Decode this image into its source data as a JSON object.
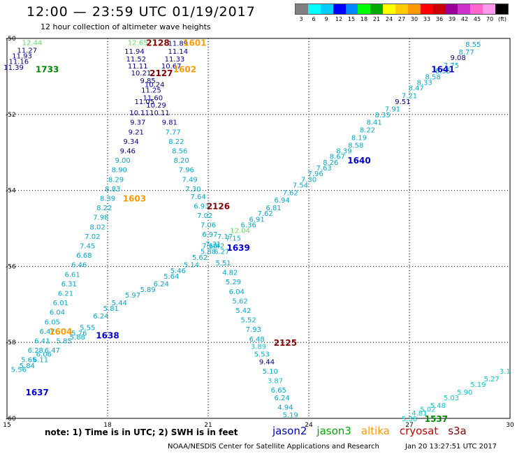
{
  "header": {
    "title": "12:00 — 23:59 UTC 01/19/2017",
    "subtitle": "12 hour collection of altimeter wave heights"
  },
  "legend": {
    "colors": [
      "#808080",
      "#00ffff",
      "#00ccff",
      "#0000ff",
      "#0088ff",
      "#00ff00",
      "#00aa00",
      "#ffff00",
      "#ffcc00",
      "#ff9900",
      "#ff0000",
      "#cc0000",
      "#990099",
      "#cc33cc",
      "#ff66cc",
      "#ff99ee",
      "#000000"
    ],
    "labels": [
      "3",
      "6",
      "9",
      "12",
      "15",
      "18",
      "21",
      "24",
      "27",
      "30",
      "33",
      "36",
      "39",
      "42",
      "45",
      "70",
      "(ft)"
    ]
  },
  "footer": {
    "note": "note:  1) Time is in UTC;  2) SWH is in feet",
    "satellites": [
      {
        "name": "jason2",
        "color": "#0000cc"
      },
      {
        "name": "jason3",
        "color": "#00aa00"
      },
      {
        "name": "altika",
        "color": "#ff9900"
      },
      {
        "name": "cryosat",
        "color": "#cc0000"
      },
      {
        "name": "s3a",
        "color": "#880000"
      }
    ],
    "credit": "NOAA/NESDIS Center for Satellite Applications and Research",
    "timestamp": "Jan 20 13:27:51 UTC 2017"
  },
  "map": {
    "lon_range": [
      15,
      30
    ],
    "lat_range": [
      -60,
      -50
    ],
    "x_ticks": [
      "15",
      "18",
      "21",
      "24",
      "27",
      "30"
    ],
    "y_ticks": [
      "-50",
      "-52",
      "-54",
      "-56",
      "-58",
      "-60"
    ],
    "passes": [
      {
        "label": "1733",
        "color": "#008800",
        "lon": 16.2,
        "lat": -50.8
      },
      {
        "label": "2128",
        "color": "#880000",
        "lon": 19.5,
        "lat": -50.1
      },
      {
        "label": "1601",
        "color": "#ff9900",
        "lon": 20.6,
        "lat": -50.1
      },
      {
        "label": "1602",
        "color": "#ff9900",
        "lon": 20.3,
        "lat": -50.8
      },
      {
        "label": "2127",
        "color": "#880000",
        "lon": 19.6,
        "lat": -50.9
      },
      {
        "label": "1641",
        "color": "#0000cc",
        "lon": 28.0,
        "lat": -50.8
      },
      {
        "label": "1640",
        "color": "#0000cc",
        "lon": 25.5,
        "lat": -53.2
      },
      {
        "label": "1603",
        "color": "#ff9900",
        "lon": 18.8,
        "lat": -54.2
      },
      {
        "label": "2126",
        "color": "#880000",
        "lon": 21.3,
        "lat": -54.4
      },
      {
        "label": "1639",
        "color": "#0000cc",
        "lon": 21.9,
        "lat": -55.5
      },
      {
        "label": "1604",
        "color": "#ff9900",
        "lon": 16.6,
        "lat": -57.7
      },
      {
        "label": "1638",
        "color": "#0000cc",
        "lon": 18.0,
        "lat": -57.8
      },
      {
        "label": "2125",
        "color": "#880000",
        "lon": 23.3,
        "lat": -58.0
      },
      {
        "label": "1637",
        "color": "#0000cc",
        "lon": 15.9,
        "lat": -59.3
      },
      {
        "label": "1537",
        "color": "#008800",
        "lon": 27.8,
        "lat": -60.0
      }
    ],
    "swh": [
      {
        "v": "12.44",
        "c": "#66dd66",
        "lon": 15.75,
        "lat": -50.1
      },
      {
        "v": "11.27",
        "c": "#000088",
        "lon": 15.6,
        "lat": -50.3
      },
      {
        "v": "11.93",
        "c": "#000088",
        "lon": 15.45,
        "lat": -50.45
      },
      {
        "v": "11.16",
        "c": "#000088",
        "lon": 15.35,
        "lat": -50.6
      },
      {
        "v": "11.39",
        "c": "#000088",
        "lon": 15.2,
        "lat": -50.75
      },
      {
        "v": "12.65",
        "c": "#66dd66",
        "lon": 18.9,
        "lat": -50.1
      },
      {
        "v": "11.89",
        "c": "#000088",
        "lon": 20.1,
        "lat": -50.12
      },
      {
        "v": "11.94",
        "c": "#000088",
        "lon": 18.8,
        "lat": -50.33
      },
      {
        "v": "11.14",
        "c": "#000088",
        "lon": 20.1,
        "lat": -50.33
      },
      {
        "v": "11.52",
        "c": "#000088",
        "lon": 18.85,
        "lat": -50.53
      },
      {
        "v": "11.33",
        "c": "#000088",
        "lon": 20.0,
        "lat": -50.53
      },
      {
        "v": "11.11",
        "c": "#000088",
        "lon": 18.9,
        "lat": -50.72
      },
      {
        "v": "10.67",
        "c": "#000088",
        "lon": 19.9,
        "lat": -50.72
      },
      {
        "v": "10.21",
        "c": "#000088",
        "lon": 19.0,
        "lat": -50.9
      },
      {
        "v": "9.85",
        "c": "#000088",
        "lon": 19.2,
        "lat": -51.1
      },
      {
        "v": "10.24",
        "c": "#000088",
        "lon": 19.4,
        "lat": -51.2
      },
      {
        "v": "11.25",
        "c": "#000088",
        "lon": 19.3,
        "lat": -51.35
      },
      {
        "v": "11.60",
        "c": "#000088",
        "lon": 19.35,
        "lat": -51.55
      },
      {
        "v": "11.05",
        "c": "#000088",
        "lon": 19.1,
        "lat": -51.65
      },
      {
        "v": "10.29",
        "c": "#000088",
        "lon": 19.45,
        "lat": -51.75
      },
      {
        "v": "10.11",
        "c": "#000088",
        "lon": 18.95,
        "lat": -51.95
      },
      {
        "v": "10.11",
        "c": "#000088",
        "lon": 19.55,
        "lat": -51.95
      },
      {
        "v": "9.37",
        "c": "#000088",
        "lon": 18.9,
        "lat": -52.2
      },
      {
        "v": "9.81",
        "c": "#000088",
        "lon": 19.85,
        "lat": -52.2
      },
      {
        "v": "9.21",
        "c": "#000088",
        "lon": 18.85,
        "lat": -52.45
      },
      {
        "v": "7.77",
        "c": "#00aacc",
        "lon": 19.95,
        "lat": -52.45
      },
      {
        "v": "9.34",
        "c": "#000088",
        "lon": 18.7,
        "lat": -52.7
      },
      {
        "v": "8.22",
        "c": "#00aacc",
        "lon": 20.05,
        "lat": -52.7
      },
      {
        "v": "9.46",
        "c": "#000088",
        "lon": 18.6,
        "lat": -52.95
      },
      {
        "v": "8.56",
        "c": "#00aacc",
        "lon": 20.15,
        "lat": -52.95
      },
      {
        "v": "9.00",
        "c": "#00aacc",
        "lon": 18.45,
        "lat": -53.2
      },
      {
        "v": "8.20",
        "c": "#00aacc",
        "lon": 20.2,
        "lat": -53.2
      },
      {
        "v": "8.90",
        "c": "#00aacc",
        "lon": 18.35,
        "lat": -53.45
      },
      {
        "v": "7.96",
        "c": "#00aacc",
        "lon": 20.35,
        "lat": -53.45
      },
      {
        "v": "8.29",
        "c": "#00aacc",
        "lon": 18.25,
        "lat": -53.7
      },
      {
        "v": "7.49",
        "c": "#00aacc",
        "lon": 20.45,
        "lat": -53.7
      },
      {
        "v": "8.83",
        "c": "#00aacc",
        "lon": 18.15,
        "lat": -53.95
      },
      {
        "v": "7.30",
        "c": "#00aacc",
        "lon": 20.55,
        "lat": -53.95
      },
      {
        "v": "8.39",
        "c": "#00aacc",
        "lon": 18.0,
        "lat": -54.2
      },
      {
        "v": "7.64",
        "c": "#00aacc",
        "lon": 20.7,
        "lat": -54.15
      },
      {
        "v": "8.22",
        "c": "#00aacc",
        "lon": 17.9,
        "lat": -54.45
      },
      {
        "v": "6.93",
        "c": "#00aacc",
        "lon": 20.8,
        "lat": -54.4
      },
      {
        "v": "7.98",
        "c": "#00aacc",
        "lon": 17.8,
        "lat": -54.7
      },
      {
        "v": "7.02",
        "c": "#00aacc",
        "lon": 20.9,
        "lat": -54.65
      },
      {
        "v": "8.02",
        "c": "#00aacc",
        "lon": 17.7,
        "lat": -54.95
      },
      {
        "v": "7.06",
        "c": "#00aacc",
        "lon": 21.0,
        "lat": -54.9
      },
      {
        "v": "7.02",
        "c": "#00aacc",
        "lon": 17.55,
        "lat": -55.2
      },
      {
        "v": "6.97",
        "c": "#00aacc",
        "lon": 21.05,
        "lat": -55.15
      },
      {
        "v": "7.45",
        "c": "#00aacc",
        "lon": 17.4,
        "lat": -55.45
      },
      {
        "v": "7.31",
        "c": "#00aacc",
        "lon": 21.15,
        "lat": -55.4
      },
      {
        "v": "6.68",
        "c": "#00aacc",
        "lon": 17.3,
        "lat": -55.7
      },
      {
        "v": "6.46",
        "c": "#00aacc",
        "lon": 17.15,
        "lat": -55.95
      },
      {
        "v": "6.61",
        "c": "#00aacc",
        "lon": 16.95,
        "lat": -56.2
      },
      {
        "v": "6.31",
        "c": "#00aacc",
        "lon": 16.85,
        "lat": -56.45
      },
      {
        "v": "6.21",
        "c": "#00aacc",
        "lon": 16.75,
        "lat": -56.7
      },
      {
        "v": "6.01",
        "c": "#00aacc",
        "lon": 16.6,
        "lat": -56.95
      },
      {
        "v": "6.04",
        "c": "#00aacc",
        "lon": 16.5,
        "lat": -57.2
      },
      {
        "v": "6.05",
        "c": "#00aacc",
        "lon": 16.35,
        "lat": -57.45
      },
      {
        "v": "6.47",
        "c": "#00aacc",
        "lon": 16.2,
        "lat": -57.7
      },
      {
        "v": "6.41",
        "c": "#00aacc",
        "lon": 16.05,
        "lat": -57.95
      },
      {
        "v": "6.28",
        "c": "#00aacc",
        "lon": 15.85,
        "lat": -58.2
      },
      {
        "v": "6.06",
        "c": "#00aacc",
        "lon": 16.1,
        "lat": -58.3
      },
      {
        "v": "5.65",
        "c": "#00aacc",
        "lon": 15.65,
        "lat": -58.45
      },
      {
        "v": "6.11",
        "c": "#00aacc",
        "lon": 16.0,
        "lat": -58.45
      },
      {
        "v": "5.56",
        "c": "#00aacc",
        "lon": 15.35,
        "lat": -58.7
      },
      {
        "v": "5.84",
        "c": "#00aacc",
        "lon": 15.6,
        "lat": -58.6
      },
      {
        "v": "6.47",
        "c": "#00aacc",
        "lon": 16.35,
        "lat": -58.2
      },
      {
        "v": "5.85",
        "c": "#00aacc",
        "lon": 16.7,
        "lat": -57.95
      },
      {
        "v": "5.88",
        "c": "#00aacc",
        "lon": 17.1,
        "lat": -57.85
      },
      {
        "v": "5.55",
        "c": "#00aacc",
        "lon": 17.4,
        "lat": -57.6
      },
      {
        "v": "5.76",
        "c": "#00aacc",
        "lon": 17.15,
        "lat": -57.75
      },
      {
        "v": "6.24",
        "c": "#00aacc",
        "lon": 17.8,
        "lat": -57.3
      },
      {
        "v": "5.81",
        "c": "#00aacc",
        "lon": 18.1,
        "lat": -57.1
      },
      {
        "v": "5.44",
        "c": "#00aacc",
        "lon": 18.35,
        "lat": -56.95
      },
      {
        "v": "5.97",
        "c": "#00aacc",
        "lon": 18.75,
        "lat": -56.75
      },
      {
        "v": "5.89",
        "c": "#00aacc",
        "lon": 19.2,
        "lat": -56.6
      },
      {
        "v": "6.24",
        "c": "#00aacc",
        "lon": 19.6,
        "lat": -56.45
      },
      {
        "v": "5.64",
        "c": "#00aacc",
        "lon": 19.9,
        "lat": -56.25
      },
      {
        "v": "5.46",
        "c": "#00aacc",
        "lon": 20.1,
        "lat": -56.1
      },
      {
        "v": "5.14",
        "c": "#00aacc",
        "lon": 20.5,
        "lat": -55.95
      },
      {
        "v": "5.62",
        "c": "#00aacc",
        "lon": 20.75,
        "lat": -55.75
      },
      {
        "v": "5.88",
        "c": "#00aacc",
        "lon": 21.0,
        "lat": -55.6
      },
      {
        "v": "7.10",
        "c": "#00aacc",
        "lon": 21.05,
        "lat": -55.45
      },
      {
        "v": "6.27",
        "c": "#00aacc",
        "lon": 21.4,
        "lat": -55.6
      },
      {
        "v": "6.42",
        "c": "#00aacc",
        "lon": 21.25,
        "lat": -55.45
      },
      {
        "v": "5.51",
        "c": "#00aacc",
        "lon": 21.45,
        "lat": -55.9
      },
      {
        "v": "4.82",
        "c": "#00aacc",
        "lon": 21.65,
        "lat": -56.15
      },
      {
        "v": "5.29",
        "c": "#00aacc",
        "lon": 21.75,
        "lat": -56.4
      },
      {
        "v": "6.04",
        "c": "#00aacc",
        "lon": 21.85,
        "lat": -56.65
      },
      {
        "v": "5.62",
        "c": "#00aacc",
        "lon": 21.95,
        "lat": -56.9
      },
      {
        "v": "5.42",
        "c": "#00aacc",
        "lon": 22.05,
        "lat": -57.15
      },
      {
        "v": "5.52",
        "c": "#00aacc",
        "lon": 22.2,
        "lat": -57.4
      },
      {
        "v": "7.93",
        "c": "#00aacc",
        "lon": 22.35,
        "lat": -57.65
      },
      {
        "v": "6.48",
        "c": "#00aacc",
        "lon": 22.45,
        "lat": -57.9
      },
      {
        "v": "3.89",
        "c": "#00cccc",
        "lon": 22.5,
        "lat": -58.1
      },
      {
        "v": "5.53",
        "c": "#00aacc",
        "lon": 22.6,
        "lat": -58.3
      },
      {
        "v": "9.44",
        "c": "#000088",
        "lon": 22.75,
        "lat": -58.5
      },
      {
        "v": "5.10",
        "c": "#00aacc",
        "lon": 22.85,
        "lat": -58.75
      },
      {
        "v": "3.87",
        "c": "#00cccc",
        "lon": 23.0,
        "lat": -59.0
      },
      {
        "v": "6.65",
        "c": "#00aacc",
        "lon": 23.1,
        "lat": -59.25
      },
      {
        "v": "6.24",
        "c": "#00aacc",
        "lon": 23.2,
        "lat": -59.45
      },
      {
        "v": "4.94",
        "c": "#00aacc",
        "lon": 23.3,
        "lat": -59.7
      },
      {
        "v": "5.19",
        "c": "#00aacc",
        "lon": 23.45,
        "lat": -59.9
      },
      {
        "v": "7.17",
        "c": "#00aacc",
        "lon": 21.5,
        "lat": -55.2
      },
      {
        "v": "7.15",
        "c": "#00aacc",
        "lon": 21.75,
        "lat": -55.25
      },
      {
        "v": "12.04",
        "c": "#66dd66",
        "lon": 21.95,
        "lat": -55.05
      },
      {
        "v": "6.36",
        "c": "#00aacc",
        "lon": 22.2,
        "lat": -54.9
      },
      {
        "v": "6.91",
        "c": "#00aacc",
        "lon": 22.45,
        "lat": -54.75
      },
      {
        "v": "7.62",
        "c": "#00aacc",
        "lon": 22.7,
        "lat": -54.6
      },
      {
        "v": "6.81",
        "c": "#00aacc",
        "lon": 22.95,
        "lat": -54.45
      },
      {
        "v": "6.94",
        "c": "#00aacc",
        "lon": 23.2,
        "lat": -54.25
      },
      {
        "v": "7.62",
        "c": "#00aacc",
        "lon": 23.45,
        "lat": -54.05
      },
      {
        "v": "7.54",
        "c": "#00aacc",
        "lon": 23.75,
        "lat": -53.85
      },
      {
        "v": "7.30",
        "c": "#00aacc",
        "lon": 24.0,
        "lat": -53.7
      },
      {
        "v": "7.96",
        "c": "#00aacc",
        "lon": 24.2,
        "lat": -53.55
      },
      {
        "v": "7.63",
        "c": "#00aacc",
        "lon": 24.45,
        "lat": -53.4
      },
      {
        "v": "8.26",
        "c": "#00aacc",
        "lon": 24.65,
        "lat": -53.25
      },
      {
        "v": "8.67",
        "c": "#00aacc",
        "lon": 24.85,
        "lat": -53.1
      },
      {
        "v": "8.39",
        "c": "#00aacc",
        "lon": 25.05,
        "lat": -52.95
      },
      {
        "v": "8.58",
        "c": "#00aacc",
        "lon": 25.4,
        "lat": -52.8
      },
      {
        "v": "8.19",
        "c": "#00aacc",
        "lon": 25.5,
        "lat": -52.6
      },
      {
        "v": "8.22",
        "c": "#00aacc",
        "lon": 25.75,
        "lat": -52.4
      },
      {
        "v": "8.41",
        "c": "#00aacc",
        "lon": 25.95,
        "lat": -52.2
      },
      {
        "v": "8.35",
        "c": "#00aacc",
        "lon": 26.2,
        "lat": -52.0
      },
      {
        "v": "7.91",
        "c": "#00aacc",
        "lon": 26.5,
        "lat": -51.85
      },
      {
        "v": "9.51",
        "c": "#000088",
        "lon": 26.8,
        "lat": -51.65
      },
      {
        "v": "7.21",
        "c": "#00aacc",
        "lon": 27.0,
        "lat": -51.5
      },
      {
        "v": "8.47",
        "c": "#00aacc",
        "lon": 27.2,
        "lat": -51.3
      },
      {
        "v": "8.33",
        "c": "#00aacc",
        "lon": 27.45,
        "lat": -51.15
      },
      {
        "v": "8.58",
        "c": "#00aacc",
        "lon": 27.7,
        "lat": -51.0
      },
      {
        "v": "8.55",
        "c": "#00aacc",
        "lon": 28.0,
        "lat": -50.85
      },
      {
        "v": "7.75",
        "c": "#00aacc",
        "lon": 28.25,
        "lat": -50.7
      },
      {
        "v": "9.08",
        "c": "#000088",
        "lon": 28.45,
        "lat": -50.5
      },
      {
        "v": "8.77",
        "c": "#00aacc",
        "lon": 28.7,
        "lat": -50.35
      },
      {
        "v": "8.55",
        "c": "#00aacc",
        "lon": 28.9,
        "lat": -50.15
      },
      {
        "v": "5.38",
        "c": "#00cccc",
        "lon": 27.0,
        "lat": -60.0
      },
      {
        "v": "4.81",
        "c": "#00cccc",
        "lon": 27.3,
        "lat": -59.85
      },
      {
        "v": "5.02",
        "c": "#00cccc",
        "lon": 27.55,
        "lat": -59.75
      },
      {
        "v": "5.48",
        "c": "#00cccc",
        "lon": 27.85,
        "lat": -59.65
      },
      {
        "v": "5.03",
        "c": "#00cccc",
        "lon": 28.25,
        "lat": -59.45
      },
      {
        "v": "5.90",
        "c": "#00cccc",
        "lon": 28.65,
        "lat": -59.3
      },
      {
        "v": "5.19",
        "c": "#00cccc",
        "lon": 29.05,
        "lat": -59.1
      },
      {
        "v": "5.27",
        "c": "#00cccc",
        "lon": 29.45,
        "lat": -58.95
      },
      {
        "v": "3.1",
        "c": "#00cccc",
        "lon": 29.85,
        "lat": -58.75
      }
    ]
  }
}
